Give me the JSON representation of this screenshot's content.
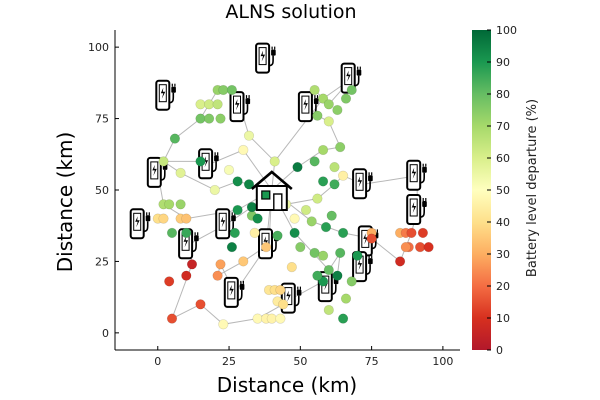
{
  "chart_data": {
    "type": "scatter",
    "title": "ALNS solution",
    "xlabel": "Distance (km)",
    "ylabel": "Distance (km)",
    "xlim": [
      -15,
      106
    ],
    "ylim": [
      -6,
      106
    ],
    "xticks": [
      0,
      25,
      50,
      75,
      100
    ],
    "yticks": [
      0,
      25,
      50,
      75,
      100
    ],
    "grid": false,
    "legend": "none",
    "colorbar": {
      "label": "Battery level departure (%)",
      "range": [
        0,
        100
      ],
      "ticks": [
        0,
        10,
        20,
        30,
        40,
        50,
        60,
        70,
        80,
        90,
        100
      ],
      "colors": [
        "#b2182b",
        "#d7301f",
        "#f46d43",
        "#fdae61",
        "#fee08b",
        "#ffffbf",
        "#d9ef8b",
        "#a6d96a",
        "#66bd63",
        "#1a9850",
        "#006837"
      ]
    },
    "depot": {
      "x": 40,
      "y": 50,
      "icon": "house-icon"
    },
    "charging_stations": [
      {
        "x": 38,
        "y": 96
      },
      {
        "x": 68,
        "y": 89
      },
      {
        "x": 3,
        "y": 83
      },
      {
        "x": 29,
        "y": 79
      },
      {
        "x": 53,
        "y": 79
      },
      {
        "x": 18,
        "y": 59
      },
      {
        "x": 0,
        "y": 56
      },
      {
        "x": 72,
        "y": 52
      },
      {
        "x": 91,
        "y": 55
      },
      {
        "x": 91,
        "y": 43
      },
      {
        "x": -6,
        "y": 38
      },
      {
        "x": 24,
        "y": 38
      },
      {
        "x": 11,
        "y": 31
      },
      {
        "x": 39,
        "y": 31
      },
      {
        "x": 74,
        "y": 32
      },
      {
        "x": 72,
        "y": 23
      },
      {
        "x": 27,
        "y": 14
      },
      {
        "x": 47,
        "y": 12
      },
      {
        "x": 60,
        "y": 16
      }
    ],
    "customers": [
      {
        "x": 21,
        "y": 85,
        "v": 72
      },
      {
        "x": 23,
        "y": 85,
        "v": 75
      },
      {
        "x": 26,
        "y": 85,
        "v": 78
      },
      {
        "x": 15,
        "y": 80,
        "v": 60
      },
      {
        "x": 18,
        "y": 80,
        "v": 62
      },
      {
        "x": 21,
        "y": 80,
        "v": 65
      },
      {
        "x": 15,
        "y": 75,
        "v": 78
      },
      {
        "x": 18,
        "y": 75,
        "v": 76
      },
      {
        "x": 22,
        "y": 75,
        "v": 74
      },
      {
        "x": 6,
        "y": 68,
        "v": 82
      },
      {
        "x": 2,
        "y": 60,
        "v": 64
      },
      {
        "x": 8,
        "y": 56,
        "v": 58
      },
      {
        "x": 2,
        "y": 45,
        "v": 68
      },
      {
        "x": 4,
        "y": 45,
        "v": 70
      },
      {
        "x": 8,
        "y": 45,
        "v": 72
      },
      {
        "x": 0,
        "y": 40,
        "v": 40
      },
      {
        "x": 2,
        "y": 40,
        "v": 38
      },
      {
        "x": 8,
        "y": 40,
        "v": 36
      },
      {
        "x": 10,
        "y": 40,
        "v": 34
      },
      {
        "x": 5,
        "y": 35,
        "v": 82
      },
      {
        "x": 10,
        "y": 35,
        "v": 86
      },
      {
        "x": 15,
        "y": 60,
        "v": 90
      },
      {
        "x": 20,
        "y": 50,
        "v": 55
      },
      {
        "x": 25,
        "y": 57,
        "v": 52
      },
      {
        "x": 30,
        "y": 64,
        "v": 48
      },
      {
        "x": 32,
        "y": 69,
        "v": 55
      },
      {
        "x": 41,
        "y": 60,
        "v": 60
      },
      {
        "x": 28,
        "y": 53,
        "v": 92
      },
      {
        "x": 32,
        "y": 52,
        "v": 94
      },
      {
        "x": 28,
        "y": 43,
        "v": 90
      },
      {
        "x": 33,
        "y": 41,
        "v": 76
      },
      {
        "x": 35,
        "y": 40,
        "v": 92
      },
      {
        "x": 42,
        "y": 34,
        "v": 84
      },
      {
        "x": 27,
        "y": 35,
        "v": 88
      },
      {
        "x": 26,
        "y": 30,
        "v": 95
      },
      {
        "x": 33,
        "y": 44,
        "v": 95
      },
      {
        "x": 49,
        "y": 58,
        "v": 96
      },
      {
        "x": 55,
        "y": 60,
        "v": 82
      },
      {
        "x": 58,
        "y": 64,
        "v": 70
      },
      {
        "x": 62,
        "y": 58,
        "v": 66
      },
      {
        "x": 58,
        "y": 53,
        "v": 88
      },
      {
        "x": 56,
        "y": 47,
        "v": 62
      },
      {
        "x": 62,
        "y": 52,
        "v": 85
      },
      {
        "x": 65,
        "y": 55,
        "v": 45
      },
      {
        "x": 64,
        "y": 65,
        "v": 74
      },
      {
        "x": 48,
        "y": 40,
        "v": 48
      },
      {
        "x": 45,
        "y": 45,
        "v": 55
      },
      {
        "x": 52,
        "y": 43,
        "v": 62
      },
      {
        "x": 54,
        "y": 39,
        "v": 72
      },
      {
        "x": 59,
        "y": 37,
        "v": 88
      },
      {
        "x": 61,
        "y": 41,
        "v": 80
      },
      {
        "x": 48,
        "y": 35,
        "v": 92
      },
      {
        "x": 50,
        "y": 30,
        "v": 75
      },
      {
        "x": 65,
        "y": 35,
        "v": 88
      },
      {
        "x": 64,
        "y": 28,
        "v": 82
      },
      {
        "x": 63,
        "y": 20,
        "v": 95
      },
      {
        "x": 58,
        "y": 18,
        "v": 90
      },
      {
        "x": 56,
        "y": 20,
        "v": 85
      },
      {
        "x": 60,
        "y": 22,
        "v": 80
      },
      {
        "x": 55,
        "y": 28,
        "v": 78
      },
      {
        "x": 58,
        "y": 27,
        "v": 72
      },
      {
        "x": 68,
        "y": 18,
        "v": 75
      },
      {
        "x": 66,
        "y": 12,
        "v": 70
      },
      {
        "x": 65,
        "y": 5,
        "v": 88
      },
      {
        "x": 60,
        "y": 8,
        "v": 65
      },
      {
        "x": 70,
        "y": 27,
        "v": 90
      },
      {
        "x": 75,
        "y": 35,
        "v": 30
      },
      {
        "x": 75,
        "y": 33,
        "v": 15
      },
      {
        "x": 85,
        "y": 35,
        "v": 30
      },
      {
        "x": 87,
        "y": 35,
        "v": 22
      },
      {
        "x": 89,
        "y": 35,
        "v": 15
      },
      {
        "x": 93,
        "y": 35,
        "v": 12
      },
      {
        "x": 88,
        "y": 30,
        "v": 20
      },
      {
        "x": 87,
        "y": 30,
        "v": 25
      },
      {
        "x": 92,
        "y": 30,
        "v": 15
      },
      {
        "x": 95,
        "y": 30,
        "v": 10
      },
      {
        "x": 85,
        "y": 25,
        "v": 8
      },
      {
        "x": 5,
        "y": 5,
        "v": 15
      },
      {
        "x": 4,
        "y": 18,
        "v": 12
      },
      {
        "x": 10,
        "y": 20,
        "v": 8
      },
      {
        "x": 12,
        "y": 24,
        "v": 5
      },
      {
        "x": 15,
        "y": 10,
        "v": 15
      },
      {
        "x": 21,
        "y": 20,
        "v": 25
      },
      {
        "x": 22,
        "y": 24,
        "v": 28
      },
      {
        "x": 30,
        "y": 25,
        "v": 35
      },
      {
        "x": 23,
        "y": 3,
        "v": 48
      },
      {
        "x": 35,
        "y": 5,
        "v": 48
      },
      {
        "x": 38,
        "y": 5,
        "v": 46
      },
      {
        "x": 40,
        "y": 5,
        "v": 46
      },
      {
        "x": 43,
        "y": 5,
        "v": 48
      },
      {
        "x": 39,
        "y": 15,
        "v": 42
      },
      {
        "x": 41,
        "y": 15,
        "v": 40
      },
      {
        "x": 43,
        "y": 15,
        "v": 38
      },
      {
        "x": 42,
        "y": 11,
        "v": 44
      },
      {
        "x": 44,
        "y": 10,
        "v": 40
      },
      {
        "x": 38,
        "y": 30,
        "v": 35
      },
      {
        "x": 47,
        "y": 23,
        "v": 40
      },
      {
        "x": 34,
        "y": 35,
        "v": 45
      },
      {
        "x": 58,
        "y": 82,
        "v": 70
      },
      {
        "x": 60,
        "y": 80,
        "v": 72
      },
      {
        "x": 63,
        "y": 78,
        "v": 74
      },
      {
        "x": 66,
        "y": 82,
        "v": 76
      },
      {
        "x": 68,
        "y": 85,
        "v": 78
      },
      {
        "x": 56,
        "y": 76,
        "v": 75
      },
      {
        "x": 60,
        "y": 74,
        "v": 60
      },
      {
        "x": 55,
        "y": 85,
        "v": 68
      }
    ],
    "routes": [
      [
        [
          40,
          50
        ],
        [
          28,
          43
        ],
        [
          10,
          40
        ],
        [
          2,
          45
        ],
        [
          0,
          56
        ],
        [
          6,
          68
        ],
        [
          15,
          75
        ],
        [
          21,
          85
        ],
        [
          26,
          85
        ],
        [
          29,
          79
        ],
        [
          32,
          69
        ],
        [
          41,
          60
        ],
        [
          40,
          50
        ]
      ],
      [
        [
          40,
          50
        ],
        [
          45,
          45
        ],
        [
          56,
          47
        ],
        [
          62,
          52
        ],
        [
          65,
          55
        ],
        [
          72,
          52
        ],
        [
          91,
          55
        ],
        [
          91,
          43
        ],
        [
          89,
          35
        ],
        [
          85,
          25
        ],
        [
          75,
          33
        ],
        [
          65,
          35
        ],
        [
          54,
          39
        ],
        [
          40,
          50
        ]
      ],
      [
        [
          40,
          50
        ],
        [
          33,
          44
        ],
        [
          24,
          38
        ],
        [
          11,
          31
        ],
        [
          12,
          24
        ],
        [
          5,
          5
        ],
        [
          15,
          10
        ],
        [
          23,
          3
        ],
        [
          35,
          5
        ],
        [
          44,
          10
        ],
        [
          47,
          12
        ],
        [
          58,
          18
        ],
        [
          63,
          20
        ],
        [
          64,
          28
        ],
        [
          60,
          22
        ],
        [
          48,
          35
        ],
        [
          40,
          50
        ]
      ],
      [
        [
          40,
          50
        ],
        [
          49,
          58
        ],
        [
          58,
          64
        ],
        [
          64,
          65
        ],
        [
          60,
          74
        ],
        [
          56,
          76
        ],
        [
          53,
          79
        ],
        [
          55,
          85
        ],
        [
          60,
          80
        ],
        [
          68,
          89
        ],
        [
          58,
          82
        ],
        [
          41,
          60
        ]
      ],
      [
        [
          40,
          50
        ],
        [
          30,
          64
        ],
        [
          18,
          59
        ],
        [
          15,
          60
        ],
        [
          2,
          60
        ],
        [
          8,
          56
        ],
        [
          20,
          50
        ],
        [
          28,
          53
        ],
        [
          40,
          50
        ]
      ],
      [
        [
          40,
          50
        ],
        [
          38,
          30
        ],
        [
          27,
          14
        ],
        [
          22,
          24
        ],
        [
          21,
          20
        ],
        [
          30,
          25
        ],
        [
          39,
          31
        ],
        [
          40,
          50
        ]
      ]
    ]
  }
}
